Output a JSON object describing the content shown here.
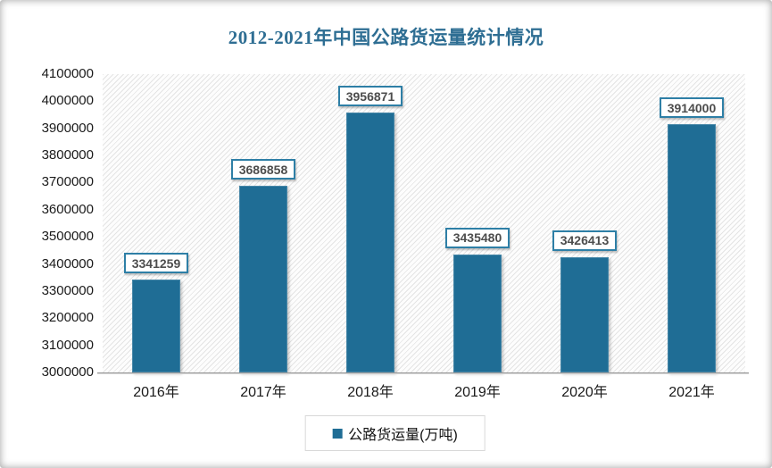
{
  "title": "2012-2021年中国公路货运量统计情况",
  "colors": {
    "bar_color": "#1F6D95",
    "title_color": "#2E6E93",
    "label_border": "#2E7FA6",
    "label_text": "#4d4d4d",
    "axis_line": "#9b9b9b",
    "legend_border": "#d8d8d8",
    "hatch_line": "#e4e4e4"
  },
  "chart_data": {
    "type": "bar",
    "title": "2012-2021年中国公路货运量统计情况",
    "categories": [
      "2016年",
      "2017年",
      "2018年",
      "2019年",
      "2020年",
      "2021年"
    ],
    "values": [
      3341259,
      3686858,
      3956871,
      3435480,
      3426413,
      3914000
    ],
    "series": [
      {
        "name": "公路货运量(万吨)",
        "values": [
          3341259,
          3686858,
          3956871,
          3435480,
          3426413,
          3914000
        ]
      }
    ],
    "xlabel": "",
    "ylabel": "",
    "ylim": [
      3000000,
      4100000
    ],
    "ytick_step": 100000,
    "ytick_labels": [
      "3000000",
      "3100000",
      "3200000",
      "3300000",
      "3400000",
      "3500000",
      "3600000",
      "3700000",
      "3800000",
      "3900000",
      "4000000",
      "4100000"
    ],
    "data_labels_shown": true,
    "grid": false,
    "plot_background": "diagonal-hatch",
    "legend": [
      "公路货运量(万吨)"
    ],
    "legend_position": "bottom-center"
  },
  "legend": {
    "label": "公路货运量(万吨)"
  }
}
